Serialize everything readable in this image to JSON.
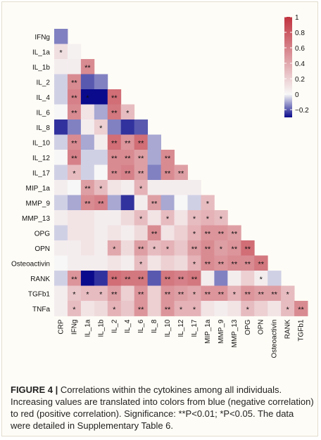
{
  "figure": {
    "label": "FIGURE 4 |",
    "caption": "Correlations within the cytokines among all individuals. Increasing values are translated into colors from blue (negative correlation) to red (positive correlation). Significance: **P<0.01; *P<0.05. The data were detailed in Supplementary Table 6."
  },
  "colors": {
    "negative": "#0a0a8c",
    "zero": "#f7f7f7",
    "positive": "#c0333f"
  },
  "chart_data": {
    "type": "heatmap",
    "title": "",
    "variables": [
      "CRP",
      "IFNg",
      "IL_1a",
      "IL_1b",
      "IL_2",
      "IL_4",
      "IL_6",
      "IL_8",
      "IL_10",
      "IL_12",
      "IL_17",
      "MIP_1a",
      "MMP_9",
      "MMP_13",
      "OPG",
      "OPN",
      "Osteoactivin",
      "RANK",
      "TGFb1",
      "TNFa"
    ],
    "row_labels": [
      "IFNg",
      "IL_1a",
      "IL_1b",
      "IL_2",
      "IL_4",
      "IL_6",
      "IL_8",
      "IL_10",
      "IL_12",
      "IL_17",
      "MIP_1a",
      "MMP_9",
      "MMP_13",
      "OPG",
      "OPN",
      "Osteoactivin",
      "RANK",
      "TGFb1",
      "TNFa"
    ],
    "col_labels": [
      "CRP",
      "IFNg",
      "IL_1a",
      "IL_1b",
      "IL_2",
      "IL_4",
      "IL_6",
      "IL_8",
      "IL_10",
      "IL_12",
      "IL_17",
      "MIP_1a",
      "MMP_9",
      "MMP_13",
      "OPG",
      "OPN",
      "Osteoactivin",
      "RANK",
      "TGFb1"
    ],
    "values": [
      [
        -0.15
      ],
      [
        0.12,
        0.03
      ],
      [
        0.05,
        0.05,
        0.55
      ],
      [
        -0.05,
        0.55,
        -0.2,
        -0.15
      ],
      [
        -0.05,
        0.6,
        -0.3,
        -0.3,
        0.7
      ],
      [
        0.0,
        0.55,
        0.1,
        -0.1,
        0.65,
        0.3
      ],
      [
        -0.25,
        -0.15,
        0.05,
        0.2,
        -0.15,
        -0.25,
        -0.2
      ],
      [
        -0.05,
        0.55,
        -0.1,
        0.05,
        0.7,
        0.5,
        0.7,
        -0.1
      ],
      [
        0.0,
        0.6,
        -0.05,
        -0.05,
        0.55,
        0.55,
        0.45,
        -0.1,
        0.55
      ],
      [
        -0.05,
        0.3,
        -0.05,
        0.0,
        0.55,
        0.6,
        0.45,
        -0.15,
        0.55,
        0.45
      ],
      [
        0.05,
        0.0,
        0.45,
        0.3,
        0.1,
        0.05,
        0.35,
        0.05,
        0.05,
        0.05,
        0.05
      ],
      [
        -0.05,
        -0.1,
        0.55,
        0.6,
        -0.1,
        -0.25,
        0.05,
        0.45,
        -0.1,
        0.0,
        -0.05,
        0.3
      ],
      [
        0.05,
        0.1,
        0.1,
        0.05,
        0.05,
        0.15,
        0.3,
        0.1,
        0.3,
        0.1,
        0.3,
        0.35,
        0.3
      ],
      [
        -0.05,
        0.1,
        0.1,
        0.05,
        0.1,
        0.05,
        0.15,
        0.55,
        0.1,
        0.2,
        0.35,
        0.5,
        0.5,
        0.45
      ],
      [
        0.05,
        0.05,
        0.1,
        0.05,
        0.4,
        0.15,
        0.45,
        0.3,
        0.35,
        0.25,
        0.45,
        0.55,
        0.45,
        0.5,
        0.7
      ],
      [
        0.0,
        0.05,
        0.05,
        0.05,
        0.1,
        0.05,
        0.3,
        0.1,
        0.2,
        0.15,
        0.35,
        0.55,
        0.5,
        0.55,
        0.55,
        0.65
      ],
      [
        -0.05,
        0.5,
        -0.3,
        -0.25,
        0.7,
        0.65,
        0.65,
        -0.2,
        0.65,
        0.6,
        0.65,
        0.05,
        -0.15,
        0.05,
        0.2,
        0.05,
        -0.05
      ],
      [
        0.05,
        0.25,
        0.3,
        0.3,
        0.45,
        0.2,
        0.5,
        0.2,
        0.5,
        0.45,
        0.4,
        0.5,
        0.5,
        0.35,
        0.5,
        0.45,
        0.45,
        0.3
      ],
      [
        0.05,
        0.3,
        0.1,
        0.15,
        0.35,
        0.25,
        0.5,
        0.2,
        0.5,
        0.35,
        0.35,
        0.1,
        0.05,
        0.1,
        0.3,
        0.2,
        0.1,
        0.3,
        0.55
      ]
    ],
    "significance": [
      [
        ""
      ],
      [
        "*",
        ""
      ],
      [
        "",
        "",
        "**"
      ],
      [
        "",
        "**",
        "",
        ""
      ],
      [
        "",
        "**",
        "*",
        "",
        "**"
      ],
      [
        "",
        "**",
        "",
        "",
        "**",
        "*"
      ],
      [
        "",
        "",
        "",
        "*",
        "",
        "",
        ""
      ],
      [
        "",
        "**",
        "",
        "",
        "**",
        "**",
        "**",
        ""
      ],
      [
        "",
        "**",
        "",
        "",
        "**",
        "**",
        "**",
        "",
        "**"
      ],
      [
        "",
        "*",
        "",
        "",
        "**",
        "**",
        "**",
        "",
        "**",
        "**"
      ],
      [
        "",
        "",
        "**",
        "*",
        "",
        "",
        "*",
        "",
        "",
        "",
        ""
      ],
      [
        "",
        "",
        "**",
        "**",
        "",
        "",
        "",
        "**",
        "",
        "",
        "",
        "*"
      ],
      [
        "",
        "",
        "",
        "",
        "",
        "",
        "*",
        "",
        "*",
        "",
        "*",
        "*",
        "*"
      ],
      [
        "",
        "",
        "",
        "",
        "",
        "",
        "",
        "**",
        "",
        "",
        "*",
        "**",
        "**",
        "**"
      ],
      [
        "",
        "",
        "",
        "",
        "*",
        "",
        "**",
        "*",
        "*",
        "",
        "**",
        "**",
        "*",
        "**",
        "**"
      ],
      [
        "",
        "",
        "",
        "",
        "",
        "",
        "*",
        "",
        "",
        "",
        "*",
        "**",
        "**",
        "**",
        "**",
        "**"
      ],
      [
        "",
        "**",
        "",
        "",
        "**",
        "**",
        "**",
        "",
        "**",
        "**",
        "**",
        "",
        "",
        "",
        "",
        "*",
        ""
      ],
      [
        "",
        "*",
        "*",
        "*",
        "**",
        "",
        "**",
        "",
        "**",
        "**",
        "*",
        "**",
        "**",
        "*",
        "**",
        "**",
        "**",
        "*"
      ],
      [
        "",
        "*",
        "",
        "",
        "*",
        "",
        "**",
        "",
        "**",
        "*",
        "*",
        "",
        "",
        "",
        "*",
        "",
        "",
        "*",
        "**"
      ]
    ],
    "colorbar": {
      "ticks": [
        1,
        0.8,
        0.6,
        0.4,
        0.2,
        0,
        -0.2
      ],
      "tick_labels": [
        "1",
        "0.8",
        "0.6",
        "0.4",
        "0.2",
        "0",
        "−0.2"
      ],
      "range": [
        -0.3,
        1.0
      ]
    },
    "legend_placement": "top-right"
  }
}
